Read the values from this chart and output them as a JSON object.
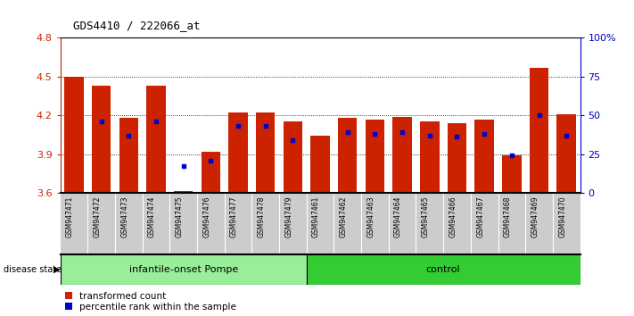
{
  "title": "GDS4410 / 222066_at",
  "samples": [
    "GSM947471",
    "GSM947472",
    "GSM947473",
    "GSM947474",
    "GSM947475",
    "GSM947476",
    "GSM947477",
    "GSM947478",
    "GSM947479",
    "GSM947461",
    "GSM947462",
    "GSM947463",
    "GSM947464",
    "GSM947465",
    "GSM947466",
    "GSM947467",
    "GSM947468",
    "GSM947469",
    "GSM947470"
  ],
  "red_values": [
    4.5,
    4.43,
    4.18,
    4.43,
    3.61,
    3.92,
    4.22,
    4.22,
    4.15,
    4.04,
    4.18,
    4.17,
    4.19,
    4.15,
    4.14,
    4.17,
    3.89,
    4.57,
    4.21
  ],
  "blue_percentiles": [
    null,
    46,
    37,
    46,
    17,
    21,
    43,
    43,
    34,
    null,
    39,
    38,
    39,
    37,
    36,
    38,
    24,
    50,
    37
  ],
  "baseline": 3.6,
  "ylim_left": [
    3.6,
    4.8
  ],
  "yticks_left": [
    3.6,
    3.9,
    4.2,
    4.5,
    4.8
  ],
  "ylim_right": [
    0,
    100
  ],
  "yticks_right": [
    0,
    25,
    50,
    75,
    100
  ],
  "ytick_labels_right": [
    "0",
    "25",
    "50",
    "75",
    "100%"
  ],
  "bar_color": "#cc2200",
  "blue_color": "#0000cc",
  "group1_label": "infantile-onset Pompe",
  "group2_label": "control",
  "group1_count": 9,
  "group2_count": 10,
  "group1_color": "#99ee99",
  "group2_color": "#33cc33",
  "disease_state_label": "disease state",
  "legend_red": "transformed count",
  "legend_blue": "percentile rank within the sample",
  "bg_color": "#ffffff",
  "tick_color_left": "#cc2200",
  "tick_color_right": "#0000cc",
  "grid_color": "#000000",
  "bar_width": 0.7,
  "label_bg": "#cccccc",
  "title_fontsize": 9,
  "axis_fontsize": 8,
  "label_fontsize": 5.5,
  "group_fontsize": 8,
  "legend_fontsize": 7.5
}
